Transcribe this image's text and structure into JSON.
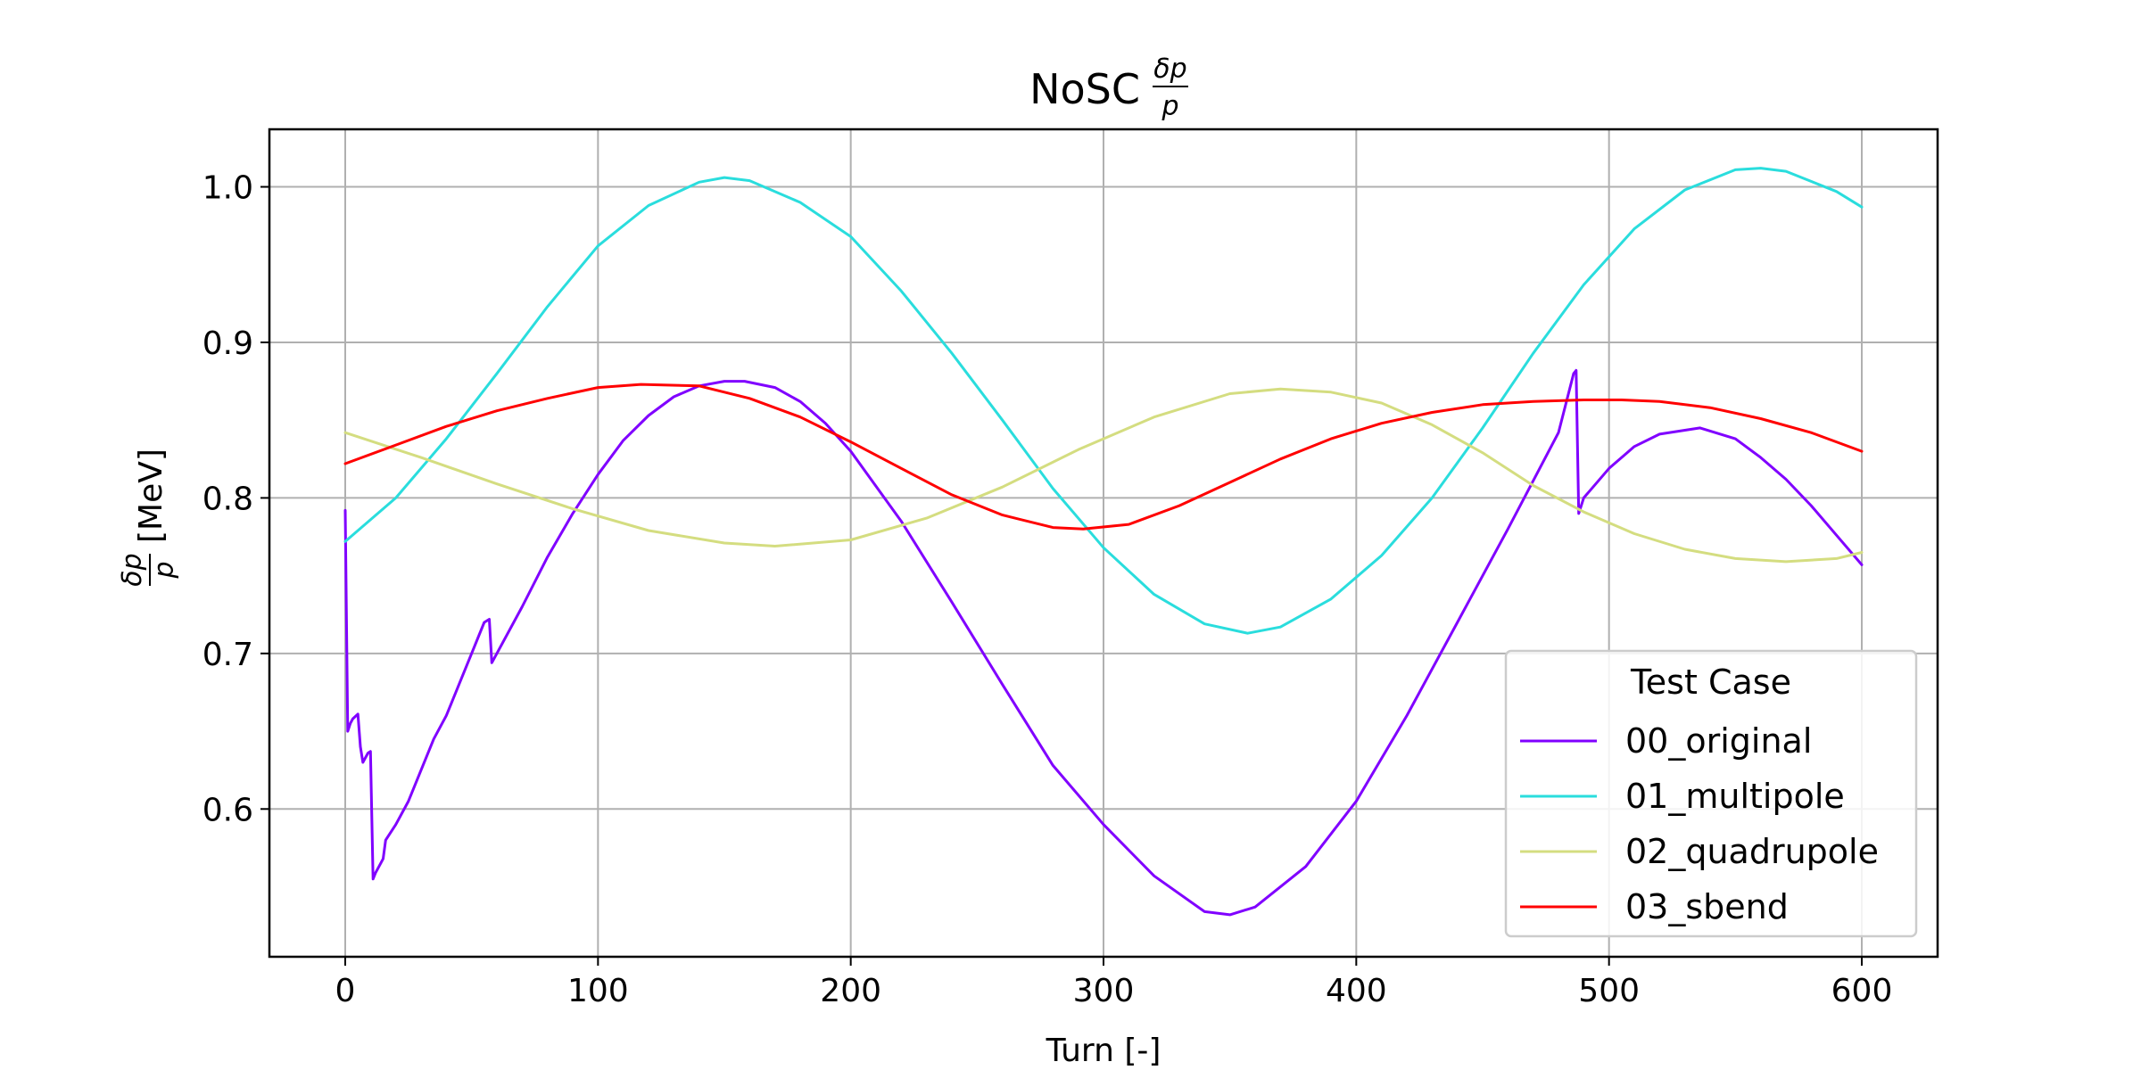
{
  "chart_data": {
    "type": "line",
    "title": "NoSC",
    "title_math": {
      "numerator": "δp",
      "denominator": "p"
    },
    "xlabel": "Turn [-]",
    "ylabel": "[MeV]",
    "ylabel_math": {
      "numerator": "δp",
      "denominator": "p"
    },
    "xlim": [
      -30,
      630
    ],
    "ylim": [
      0.505,
      1.037
    ],
    "xticks": [
      0,
      100,
      200,
      300,
      400,
      500,
      600
    ],
    "yticks": [
      0.6,
      0.7,
      0.8,
      0.9,
      1.0
    ],
    "xtick_labels": [
      "0",
      "100",
      "200",
      "300",
      "400",
      "500",
      "600"
    ],
    "ytick_labels": [
      "0.6",
      "0.7",
      "0.8",
      "0.9",
      "1.0"
    ],
    "grid": true,
    "legend": {
      "title": "Test Case",
      "position": "lower-right"
    },
    "series": [
      {
        "name": "00_original",
        "color": "#8000ff",
        "x": [
          0,
          1,
          2,
          3,
          5,
          6,
          7,
          8,
          9,
          10,
          11,
          12,
          14,
          15,
          16,
          20,
          25,
          30,
          35,
          40,
          45,
          50,
          55,
          57,
          58,
          60,
          70,
          80,
          90,
          100,
          110,
          120,
          130,
          140,
          150,
          158,
          170,
          180,
          190,
          200,
          220,
          240,
          260,
          280,
          300,
          320,
          340,
          350,
          360,
          380,
          400,
          420,
          440,
          460,
          480,
          486,
          487,
          488,
          490,
          500,
          510,
          520,
          536,
          550,
          560,
          570,
          580,
          590,
          600
        ],
        "y": [
          0.792,
          0.65,
          0.655,
          0.658,
          0.661,
          0.64,
          0.63,
          0.633,
          0.636,
          0.637,
          0.555,
          0.559,
          0.565,
          0.568,
          0.58,
          0.59,
          0.605,
          0.625,
          0.645,
          0.66,
          0.68,
          0.7,
          0.72,
          0.722,
          0.694,
          0.7,
          0.73,
          0.762,
          0.79,
          0.815,
          0.837,
          0.853,
          0.865,
          0.872,
          0.875,
          0.875,
          0.871,
          0.862,
          0.848,
          0.83,
          0.785,
          0.733,
          0.68,
          0.628,
          0.59,
          0.557,
          0.534,
          0.532,
          0.537,
          0.563,
          0.605,
          0.66,
          0.72,
          0.78,
          0.842,
          0.88,
          0.882,
          0.79,
          0.8,
          0.819,
          0.833,
          0.841,
          0.845,
          0.838,
          0.826,
          0.812,
          0.795,
          0.776,
          0.757
        ]
      },
      {
        "name": "01_multipole",
        "color": "#2adddd",
        "x": [
          0,
          20,
          40,
          60,
          80,
          100,
          120,
          140,
          150,
          160,
          180,
          200,
          220,
          240,
          260,
          280,
          300,
          320,
          340,
          357,
          370,
          390,
          410,
          430,
          450,
          470,
          490,
          510,
          530,
          550,
          560,
          570,
          590,
          600
        ],
        "y": [
          0.772,
          0.8,
          0.838,
          0.88,
          0.923,
          0.962,
          0.988,
          1.003,
          1.006,
          1.004,
          0.99,
          0.968,
          0.933,
          0.893,
          0.85,
          0.806,
          0.768,
          0.738,
          0.719,
          0.713,
          0.717,
          0.735,
          0.763,
          0.8,
          0.845,
          0.893,
          0.937,
          0.973,
          0.998,
          1.011,
          1.012,
          1.01,
          0.997,
          0.987
        ]
      },
      {
        "name": "02_quadrupole",
        "color": "#d4dd80",
        "x": [
          0,
          30,
          60,
          90,
          120,
          150,
          170,
          200,
          230,
          260,
          290,
          320,
          350,
          370,
          390,
          410,
          430,
          450,
          470,
          490,
          510,
          530,
          550,
          570,
          590,
          600
        ],
        "y": [
          0.842,
          0.826,
          0.809,
          0.793,
          0.779,
          0.771,
          0.769,
          0.773,
          0.787,
          0.807,
          0.831,
          0.852,
          0.867,
          0.87,
          0.868,
          0.861,
          0.847,
          0.829,
          0.808,
          0.791,
          0.777,
          0.767,
          0.761,
          0.759,
          0.761,
          0.765
        ]
      },
      {
        "name": "03_sbend",
        "color": "#ff0000",
        "x": [
          0,
          20,
          40,
          60,
          80,
          100,
          117,
          140,
          160,
          180,
          200,
          220,
          240,
          260,
          280,
          292,
          310,
          330,
          350,
          370,
          390,
          410,
          430,
          450,
          470,
          490,
          505,
          520,
          540,
          560,
          580,
          600
        ],
        "y": [
          0.822,
          0.834,
          0.846,
          0.856,
          0.864,
          0.871,
          0.873,
          0.872,
          0.864,
          0.852,
          0.836,
          0.819,
          0.802,
          0.789,
          0.781,
          0.78,
          0.783,
          0.795,
          0.81,
          0.825,
          0.838,
          0.848,
          0.855,
          0.86,
          0.862,
          0.863,
          0.863,
          0.862,
          0.858,
          0.851,
          0.842,
          0.83
        ]
      }
    ]
  }
}
